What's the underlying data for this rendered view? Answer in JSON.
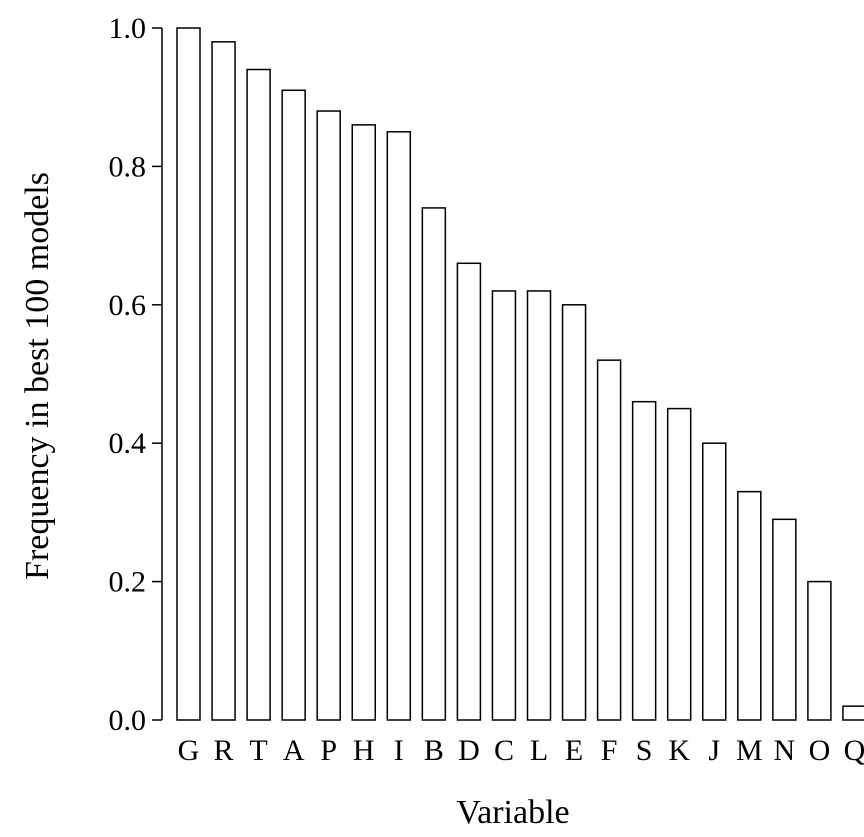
{
  "chart_data": {
    "type": "bar",
    "title": "",
    "xlabel": "Variable",
    "ylabel": "Frequency in best 100 models",
    "ylim": [
      0,
      1.0
    ],
    "yticks": [
      "0.0",
      "0.2",
      "0.4",
      "0.6",
      "0.8",
      "1.0"
    ],
    "categories": [
      "G",
      "R",
      "T",
      "A",
      "P",
      "H",
      "I",
      "B",
      "D",
      "C",
      "L",
      "E",
      "F",
      "S",
      "K",
      "J",
      "M",
      "N",
      "O",
      "Q"
    ],
    "values": [
      1.0,
      0.98,
      0.94,
      0.91,
      0.88,
      0.86,
      0.85,
      0.74,
      0.66,
      0.62,
      0.62,
      0.6,
      0.52,
      0.46,
      0.45,
      0.4,
      0.33,
      0.29,
      0.2,
      0.02
    ],
    "bar_fill": "#ffffff",
    "bar_stroke": "#000000",
    "grid": false,
    "legend": "none"
  }
}
